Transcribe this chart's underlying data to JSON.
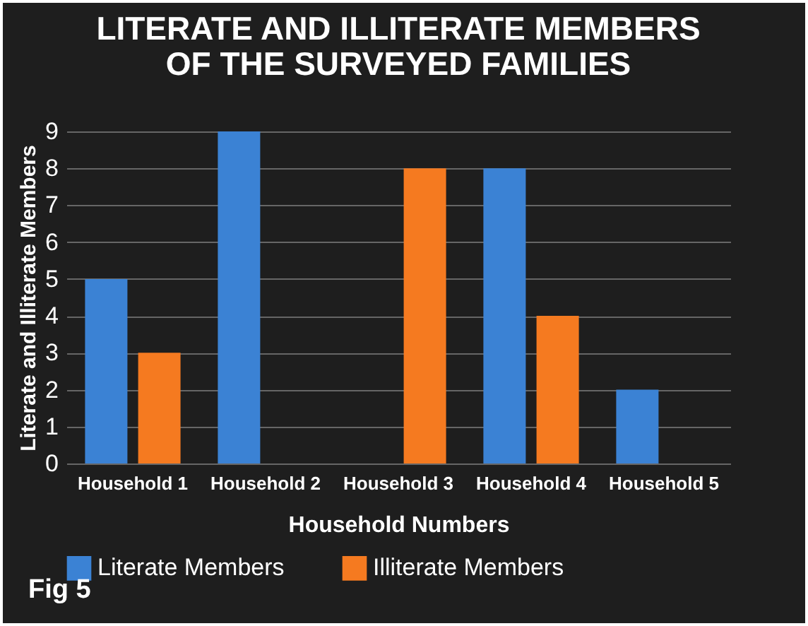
{
  "chart_data": {
    "type": "bar",
    "title": "LITERATE AND ILLITERATE MEMBERS\nOF THE SURVEYED FAMILIES",
    "xlabel": "Household Numbers",
    "ylabel": "Literate and Illiterate Members",
    "categories": [
      "Household 1",
      "Household 2",
      "Household 3",
      "Household 4",
      "Household 5"
    ],
    "series": [
      {
        "name": "Literate Members",
        "color": "#3b82d4",
        "values": [
          5,
          9,
          0,
          8,
          2
        ]
      },
      {
        "name": "Illiterate Members",
        "color": "#f57a20",
        "values": [
          3,
          0,
          8,
          4,
          0
        ]
      }
    ],
    "ylim": [
      0,
      9
    ],
    "yticks": [
      0,
      1,
      2,
      3,
      4,
      5,
      6,
      7,
      8,
      9
    ],
    "grid": "y",
    "legend": "bottom",
    "annotations": [
      "Fig 5"
    ]
  }
}
